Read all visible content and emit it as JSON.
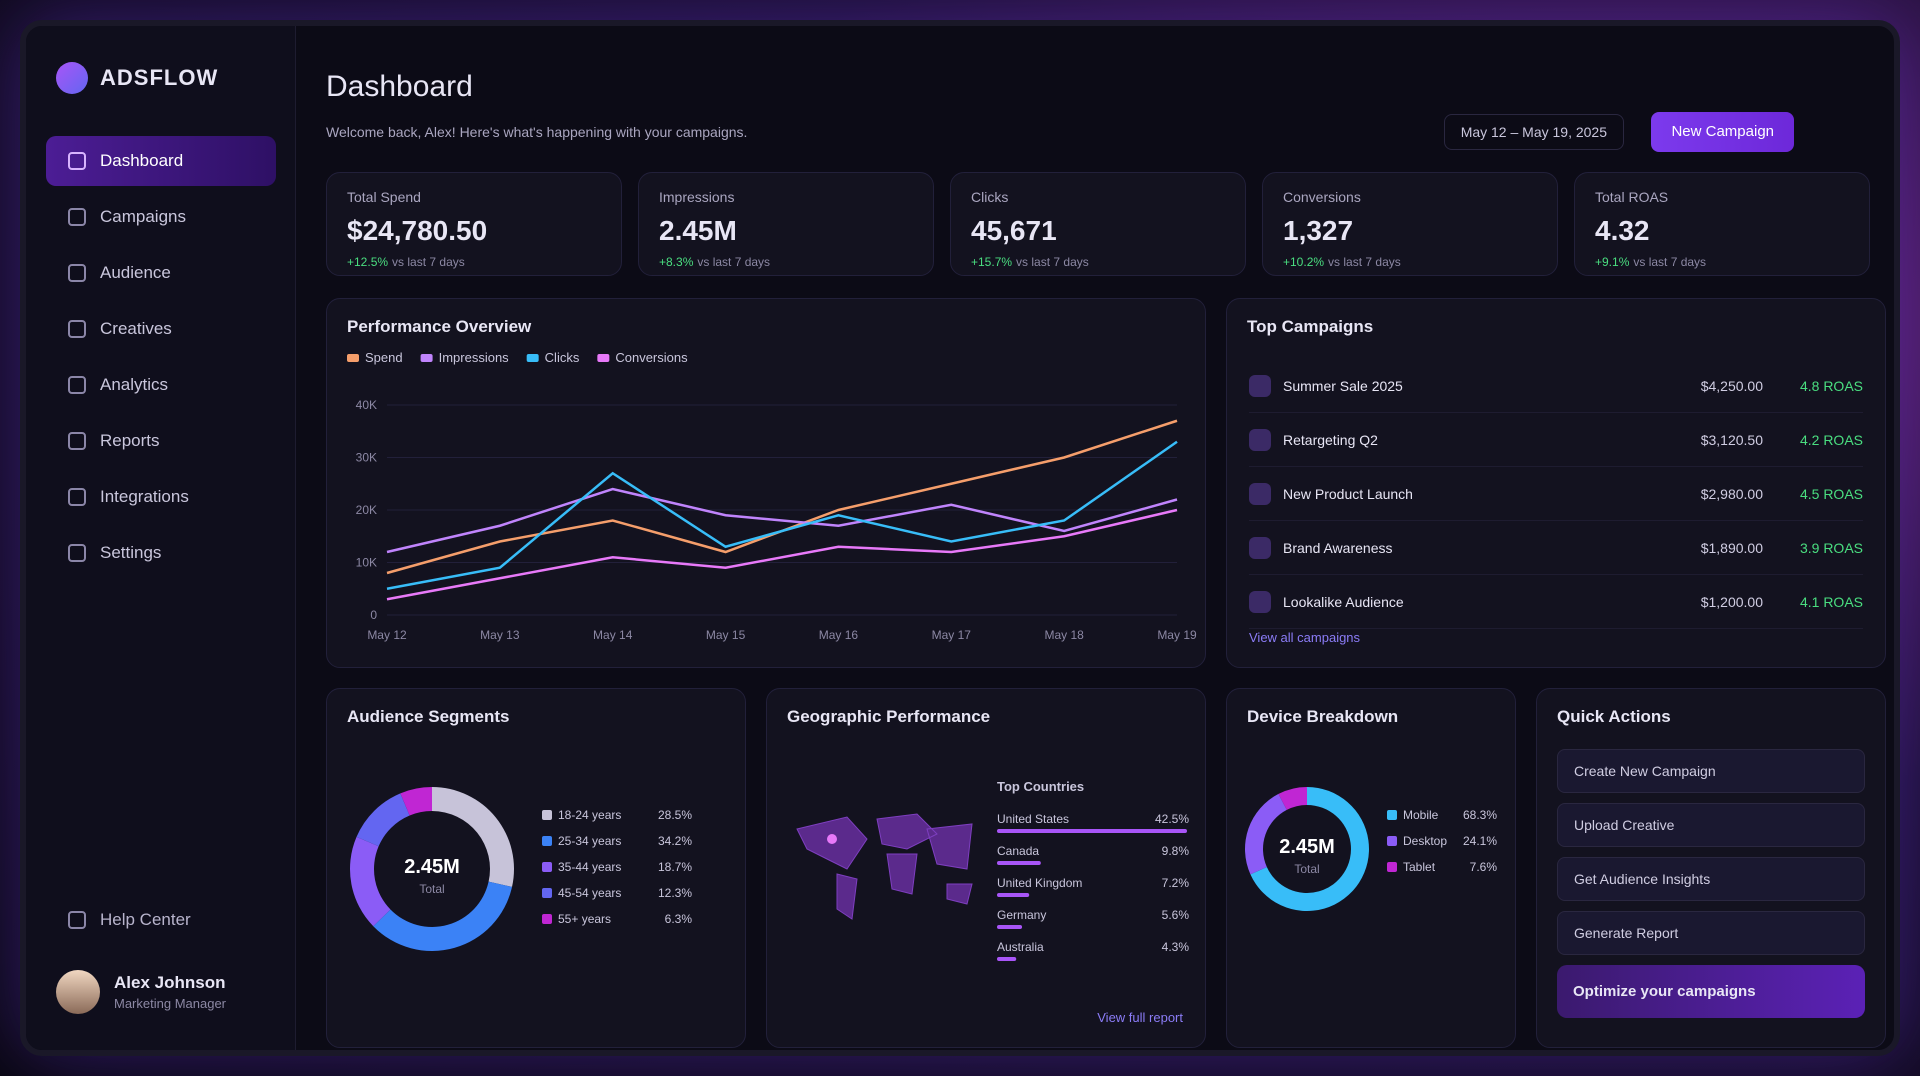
{
  "sidebar": {
    "brand": "ADSFLOW",
    "nav": [
      "Dashboard",
      "Campaigns",
      "Audience",
      "Creatives",
      "Analytics",
      "Reports",
      "Integrations",
      "Settings"
    ],
    "help": "Help Center",
    "user": {
      "name": "Alex Johnson",
      "role": "Marketing Manager"
    }
  },
  "header": {
    "title": "Dashboard",
    "subtitle": "Welcome back, Alex! Here's what's happening with your campaigns.",
    "date_range": "May 12 – May 19, 2025",
    "new_campaign": "New Campaign"
  },
  "kpis": [
    {
      "label": "Total Spend",
      "value": "$24,780.50",
      "change": "+12.5%",
      "period": "vs last 7 days"
    },
    {
      "label": "Impressions",
      "value": "2.45M",
      "change": "+8.3%",
      "period": "vs last 7 days"
    },
    {
      "label": "Clicks",
      "value": "45,671",
      "change": "+15.7%",
      "period": "vs last 7 days"
    },
    {
      "label": "Conversions",
      "value": "1,327",
      "change": "+10.2%",
      "period": "vs last 7 days"
    },
    {
      "label": "Total ROAS",
      "value": "4.32",
      "change": "+9.1%",
      "period": "vs last 7 days"
    }
  ],
  "performance": {
    "title": "Performance Overview",
    "chart_data": {
      "type": "line",
      "categories": [
        "May 12",
        "May 13",
        "May 14",
        "May 15",
        "May 16",
        "May 17",
        "May 18",
        "May 19"
      ],
      "series": [
        {
          "name": "Spend",
          "color": "#f59e6b",
          "values": [
            8000,
            14000,
            18000,
            12000,
            20000,
            25000,
            30000,
            37000
          ]
        },
        {
          "name": "Impressions",
          "color": "#c084fc",
          "values": [
            12000,
            17000,
            24000,
            19000,
            17000,
            21000,
            16000,
            22000
          ]
        },
        {
          "name": "Clicks",
          "color": "#38bdf8",
          "values": [
            5000,
            9000,
            27000,
            13000,
            19000,
            14000,
            18000,
            33000
          ]
        },
        {
          "name": "Conversions",
          "color": "#e879f9",
          "values": [
            3000,
            7000,
            11000,
            9000,
            13000,
            12000,
            15000,
            20000
          ]
        }
      ],
      "ylim": [
        0,
        40000
      ],
      "yticks": [
        0,
        {
          "value": 10000,
          "label": "10K"
        },
        {
          "value": 20000,
          "label": "20K"
        },
        {
          "value": 30000,
          "label": "30K"
        },
        {
          "value": 40000,
          "label": "40K"
        }
      ],
      "grid": true
    }
  },
  "top_campaigns": {
    "title": "Top Campaigns",
    "rows": [
      {
        "name": "Summer Sale 2025",
        "spend": "$4,250.00",
        "roas": "4.8 ROAS"
      },
      {
        "name": "Retargeting Q2",
        "spend": "$3,120.50",
        "roas": "4.2 ROAS"
      },
      {
        "name": "New Product Launch",
        "spend": "$2,980.00",
        "roas": "4.5 ROAS"
      },
      {
        "name": "Brand Awareness",
        "spend": "$1,890.00",
        "roas": "3.9 ROAS"
      },
      {
        "name": "Lookalike Audience",
        "spend": "$1,200.00",
        "roas": "4.1 ROAS"
      }
    ],
    "link": "View all campaigns"
  },
  "audience_segments": {
    "title": "Audience Segments",
    "center_value": "2.45M",
    "center_label": "Total",
    "chart_data": {
      "type": "pie",
      "categories": [
        "18-24 years",
        "25-34 years",
        "35-44 years",
        "45-54 years",
        "55+ years"
      ],
      "values": [
        28.5,
        34.2,
        18.7,
        12.3,
        6.3
      ],
      "value_labels": [
        "28.5%",
        "34.2%",
        "18.7%",
        "12.3%",
        "6.3%"
      ],
      "colors": [
        "#c7c3d9",
        "#3b82f6",
        "#8b5cf6",
        "#6366f1",
        "#c026d3"
      ]
    }
  },
  "geographic": {
    "title": "Geographic Performance",
    "list_title": "Top Countries",
    "chart_data": {
      "type": "bar",
      "categories": [
        "United States",
        "Canada",
        "United Kingdom",
        "Germany",
        "Australia"
      ],
      "values": [
        42.5,
        9.8,
        7.2,
        5.6,
        4.3
      ],
      "value_labels": [
        "42.5%",
        "9.8%",
        "7.2%",
        "5.6%",
        "4.3%"
      ],
      "color": "#a855f7"
    },
    "link": "View full report"
  },
  "device": {
    "title": "Device Breakdown",
    "center_value": "2.45M",
    "center_label": "Total",
    "chart_data": {
      "type": "pie",
      "categories": [
        "Mobile",
        "Desktop",
        "Tablet"
      ],
      "values": [
        68.3,
        24.1,
        7.6
      ],
      "value_labels": [
        "68.3%",
        "24.1%",
        "7.6%"
      ],
      "colors": [
        "#38bdf8",
        "#8b5cf6",
        "#c026d3"
      ]
    }
  },
  "quick_actions": {
    "title": "Quick Actions",
    "items": [
      "Create New Campaign",
      "Upload Creative",
      "Get Audience Insights",
      "Generate Report"
    ],
    "promo": "Optimize your campaigns"
  }
}
